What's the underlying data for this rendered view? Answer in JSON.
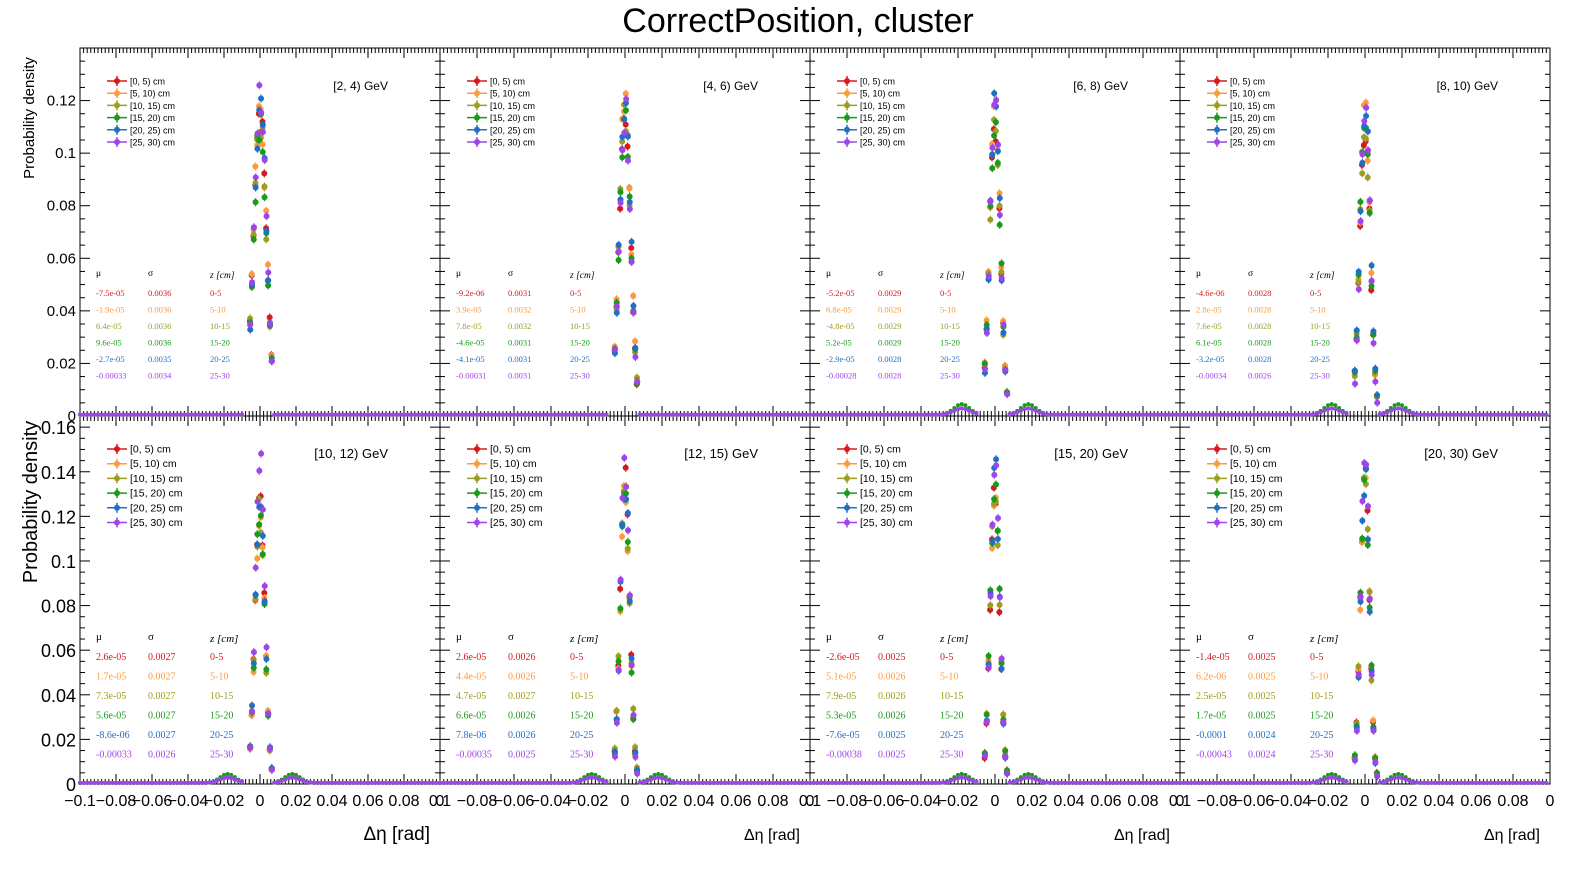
{
  "title": "CorrectPosition, cluster",
  "ylabel": "Probability density",
  "xlabel": "Δη  [rad]",
  "legend_entries": [
    "[0, 5) cm",
    "[5, 10) cm",
    "[10, 15) cm",
    "[15, 20) cm",
    "[20, 25) cm",
    "[25, 30) cm"
  ],
  "colors": [
    "#d7191c",
    "#fd9a3c",
    "#9d9d22",
    "#1a9a1a",
    "#1f6fc4",
    "#9d45e8"
  ],
  "stats_headers": [
    "μ",
    "σ",
    "z [cm]"
  ],
  "z_labels": [
    "0-5",
    "5-10",
    "10-15",
    "15-20",
    "20-25",
    "25-30"
  ],
  "x_ticks_first": [
    "−0.1",
    "−0.08",
    "−0.06",
    "−0.04",
    "−0.02",
    "0",
    "0.02",
    "0.04",
    "0.06",
    "0.08",
    "0"
  ],
  "x_ticks_other": [
    "0.1",
    "−0.08",
    "−0.06",
    "−0.04",
    "−0.02",
    "0",
    "0.02",
    "0.04",
    "0.06",
    "0.08",
    "0"
  ],
  "chart_data": [
    {
      "type": "scatter",
      "energy": "[2, 4) GeV",
      "xlim": [
        -0.1,
        0.1
      ],
      "ylim": [
        0,
        0.14
      ],
      "yticks": [
        "0.02",
        "0.04",
        "0.06",
        "0.08",
        "0.1",
        "0.12"
      ],
      "mu": [
        "-7.5e-05",
        "-1.9e-05",
        "6.4e-05",
        "9.6e-05",
        "-2.7e-05",
        "-0.00033"
      ],
      "sigma": [
        "0.0036",
        "0.0036",
        "0.0036",
        "0.0036",
        "0.0035",
        "0.0034"
      ],
      "peaks": [
        0.116,
        0.118,
        0.112,
        0.11,
        0.119,
        0.123
      ]
    },
    {
      "type": "scatter",
      "energy": "[4, 6) GeV",
      "xlim": [
        -0.1,
        0.1
      ],
      "ylim": [
        0,
        0.14
      ],
      "yticks": [],
      "mu": [
        "-9.2e-06",
        "3.9e-05",
        "7.8e-05",
        "-4.6e-05",
        "-4.1e-05",
        "-0.00031"
      ],
      "sigma": [
        "0.0031",
        "0.0032",
        "0.0032",
        "0.0031",
        "0.0031",
        "0.0031"
      ],
      "peaks": [
        0.117,
        0.118,
        0.114,
        0.118,
        0.121,
        0.116
      ]
    },
    {
      "type": "scatter",
      "energy": "[6, 8) GeV",
      "xlim": [
        -0.1,
        0.1
      ],
      "ylim": [
        0,
        0.14
      ],
      "yticks": [],
      "mu": [
        "-5.2e-05",
        "6.8e-05",
        "-4.8e-05",
        "5.2e-05",
        "-2.9e-05",
        "-0.00028"
      ],
      "sigma": [
        "0.0029",
        "0.0029",
        "0.0029",
        "0.0029",
        "0.0028",
        "0.0028"
      ],
      "peaks": [
        0.112,
        0.115,
        0.11,
        0.113,
        0.118,
        0.122
      ]
    },
    {
      "type": "scatter",
      "energy": "[8, 10) GeV",
      "xlim": [
        -0.1,
        0.1
      ],
      "ylim": [
        0,
        0.14
      ],
      "yticks": [],
      "mu": [
        "-4.6e-06",
        "2.8e-05",
        "7.6e-05",
        "6.1e-05",
        "-3.2e-05",
        "-0.00034"
      ],
      "sigma": [
        "0.0028",
        "0.0028",
        "0.0028",
        "0.0028",
        "0.0028",
        "0.0026"
      ],
      "peaks": [
        0.112,
        0.114,
        0.11,
        0.114,
        0.118,
        0.122
      ]
    },
    {
      "type": "scatter",
      "energy": "[10, 12) GeV",
      "xlim": [
        -0.1,
        0.1
      ],
      "ylim": [
        0,
        0.165
      ],
      "yticks": [
        "0.02",
        "0.04",
        "0.06",
        "0.08",
        "0.1",
        "0.12",
        "0.14",
        "0.16"
      ],
      "mu": [
        "2.6e-05",
        "1.7e-05",
        "7.3e-05",
        "5.6e-05",
        "-8.6e-06",
        "-0.00033"
      ],
      "sigma": [
        "0.0027",
        "0.0027",
        "0.0027",
        "0.0027",
        "0.0027",
        "0.0026"
      ],
      "peaks": [
        0.13,
        0.125,
        0.123,
        0.127,
        0.133,
        0.146
      ]
    },
    {
      "type": "scatter",
      "energy": "[12, 15) GeV",
      "xlim": [
        -0.1,
        0.1
      ],
      "ylim": [
        0,
        0.165
      ],
      "yticks": [],
      "mu": [
        "2.6e-05",
        "4.4e-05",
        "4.7e-05",
        "6.6e-05",
        "7.8e-06",
        "-0.00035"
      ],
      "sigma": [
        "0.0026",
        "0.0026",
        "0.0027",
        "0.0026",
        "0.0026",
        "0.0025"
      ],
      "peaks": [
        0.139,
        0.132,
        0.128,
        0.131,
        0.135,
        0.146
      ]
    },
    {
      "type": "scatter",
      "energy": "[15, 20) GeV",
      "xlim": [
        -0.1,
        0.1
      ],
      "ylim": [
        0,
        0.165
      ],
      "yticks": [],
      "mu": [
        "-2.6e-05",
        "5.1e-05",
        "7.9e-05",
        "5.3e-05",
        "-7.6e-05",
        "-0.00038"
      ],
      "sigma": [
        "0.0025",
        "0.0026",
        "0.0026",
        "0.0026",
        "0.0025",
        "0.0025"
      ],
      "peaks": [
        0.136,
        0.134,
        0.131,
        0.133,
        0.139,
        0.146
      ]
    },
    {
      "type": "scatter",
      "energy": "[20, 30) GeV",
      "xlim": [
        -0.1,
        0.1
      ],
      "ylim": [
        0,
        0.165
      ],
      "yticks": [],
      "mu": [
        "-1.4e-05",
        "6.2e-06",
        "2.5e-05",
        "1.7e-05",
        "-0.0001",
        "-0.00043"
      ],
      "sigma": [
        "0.0025",
        "0.0025",
        "0.0025",
        "0.0025",
        "0.0024",
        "0.0024"
      ],
      "peaks": [
        0.138,
        0.137,
        0.133,
        0.136,
        0.14,
        0.146
      ]
    }
  ]
}
